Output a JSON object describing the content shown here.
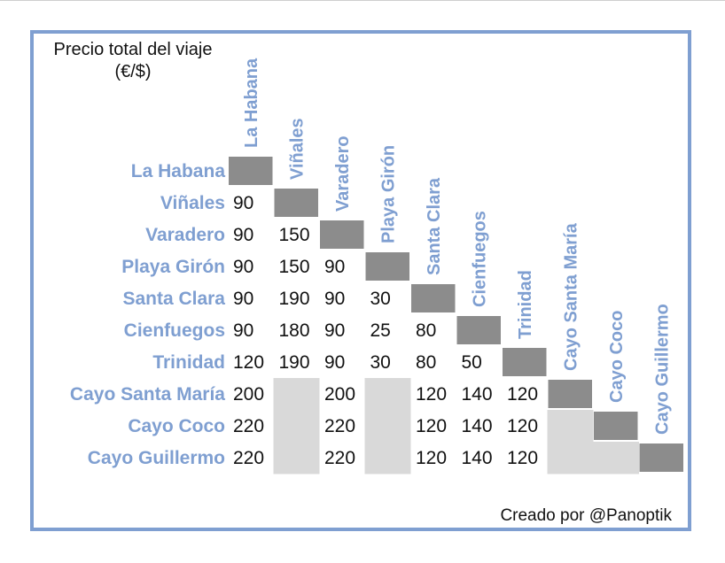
{
  "corner_title": "Precio total del viaje (€/$)",
  "credit": "Creado por @Panoptik",
  "colors": {
    "label": "#7f9fd1",
    "frame": "#7f9fd1",
    "diagonal": "#8c8c8c",
    "missing": "#d9d9d9",
    "text": "#111111"
  },
  "chart_data": {
    "type": "table",
    "title": "Precio total del viaje (€/$)",
    "rows": [
      "La Habana",
      "Viñales",
      "Varadero",
      "Playa Girón",
      "Santa Clara",
      "Cienfuegos",
      "Trinidad",
      "Cayo Santa María",
      "Cayo Coco",
      "Cayo Guillermo"
    ],
    "columns": [
      "La Habana",
      "Viñales",
      "Varadero",
      "Playa Girón",
      "Santa Clara",
      "Cienfuegos",
      "Trinidad",
      "Cayo Santa María",
      "Cayo Coco",
      "Cayo Guillermo"
    ],
    "values": [
      [
        null,
        null,
        null,
        null,
        null,
        null,
        null,
        null,
        null,
        null
      ],
      [
        90,
        null,
        null,
        null,
        null,
        null,
        null,
        null,
        null,
        null
      ],
      [
        90,
        150,
        null,
        null,
        null,
        null,
        null,
        null,
        null,
        null
      ],
      [
        90,
        150,
        90,
        null,
        null,
        null,
        null,
        null,
        null,
        null
      ],
      [
        90,
        190,
        90,
        30,
        null,
        null,
        null,
        null,
        null,
        null
      ],
      [
        90,
        180,
        90,
        25,
        80,
        null,
        null,
        null,
        null,
        null
      ],
      [
        120,
        190,
        90,
        30,
        80,
        50,
        null,
        null,
        null,
        null
      ],
      [
        200,
        null,
        200,
        null,
        120,
        140,
        120,
        null,
        null,
        null
      ],
      [
        220,
        null,
        220,
        null,
        120,
        140,
        120,
        null,
        null,
        null
      ],
      [
        220,
        null,
        220,
        null,
        120,
        140,
        120,
        null,
        null,
        null
      ]
    ]
  }
}
